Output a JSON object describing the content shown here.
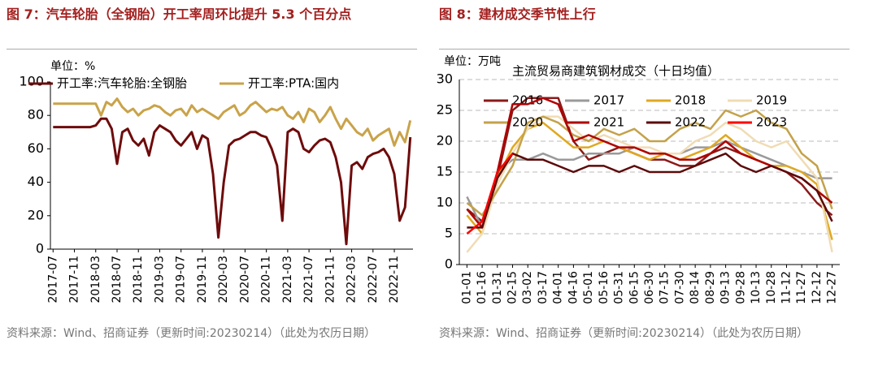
{
  "chart_data": [
    {
      "type": "line",
      "title": "图 7：汽车轮胎（全钢胎）开工率周环比提升 5.3 个百分点",
      "unit": "单位：%",
      "source": "资料来源：Wind、招商证券（更新时间:20230214）（此处为农历日期）",
      "legend": "top",
      "grid": false,
      "categories": [
        "2017-07",
        null,
        null,
        null,
        "2017-11",
        null,
        null,
        null,
        "2018-03",
        null,
        null,
        null,
        "2018-07",
        null,
        null,
        null,
        "2018-11",
        null,
        null,
        null,
        "2019-03",
        null,
        null,
        null,
        "2019-07",
        null,
        null,
        null,
        "2019-11",
        null,
        null,
        null,
        "2020-03",
        null,
        null,
        null,
        "2020-07",
        null,
        null,
        null,
        "2020-11",
        null,
        null,
        null,
        "2021-03",
        null,
        null,
        null,
        "2021-07",
        null,
        null,
        null,
        "2021-11",
        null,
        null,
        null,
        "2022-03",
        null,
        null,
        null,
        "2022-07",
        null,
        null,
        null,
        "2022-11",
        null,
        null,
        null
      ],
      "ylim": [
        0,
        100
      ],
      "yticks": [
        0,
        20,
        40,
        60,
        80,
        100
      ],
      "series": [
        {
          "name": "开工率:汽车轮胎:全钢胎",
          "color": "#6e0b0b",
          "values": [
            73,
            73,
            73,
            73,
            73,
            73,
            73,
            73,
            74,
            78,
            78,
            72,
            51,
            70,
            72,
            65,
            62,
            66,
            56,
            70,
            74,
            72,
            70,
            65,
            62,
            66,
            70,
            60,
            68,
            66,
            45,
            7,
            40,
            62,
            65,
            66,
            68,
            70,
            70,
            68,
            67,
            60,
            50,
            17,
            70,
            72,
            70,
            60,
            58,
            62,
            65,
            66,
            64,
            55,
            40,
            3,
            50,
            52,
            48,
            55,
            57,
            58,
            60,
            55,
            45,
            17,
            25,
            67
          ]
        },
        {
          "name": "开工率:PTA:国内",
          "color": "#c9a34a",
          "values": [
            87,
            87,
            87,
            87,
            87,
            87,
            87,
            87,
            87,
            80,
            88,
            86,
            90,
            85,
            82,
            84,
            80,
            83,
            84,
            86,
            85,
            82,
            80,
            83,
            84,
            80,
            86,
            82,
            84,
            82,
            80,
            78,
            82,
            84,
            86,
            80,
            82,
            86,
            88,
            85,
            82,
            84,
            83,
            85,
            80,
            78,
            82,
            76,
            84,
            82,
            76,
            80,
            85,
            78,
            72,
            78,
            74,
            70,
            68,
            72,
            65,
            68,
            70,
            72,
            62,
            70,
            64,
            77
          ]
        }
      ]
    },
    {
      "type": "line",
      "title": "图 8：建材成交季节性上行",
      "unit": "单位：万吨",
      "subtitle": "主流贸易商建筑钢材成交（十日均值）",
      "source": "资料来源：Wind、招商证券（更新时间:20230214）（此处为农历日期）",
      "legend": "top",
      "grid": true,
      "categories": [
        "01-01",
        "01-16",
        "01-31",
        "02-15",
        "03-02",
        "03-17",
        "04-01",
        "04-16",
        "05-01",
        "05-16",
        "05-31",
        "06-15",
        "06-30",
        "07-15",
        "07-30",
        "08-14",
        "08-29",
        "09-13",
        "09-28",
        "10-13",
        "10-28",
        "11-12",
        "11-27",
        "12-12",
        "12-27"
      ],
      "ylim": [
        0,
        30
      ],
      "yticks": [
        0,
        5,
        10,
        15,
        20,
        25,
        30
      ],
      "series": [
        {
          "name": "2016",
          "color": "#8b1a1a",
          "values": [
            9,
            7,
            14,
            25,
            27,
            27,
            27,
            20,
            17,
            18,
            19,
            18,
            17,
            17,
            16,
            16,
            18,
            19,
            18,
            17,
            16,
            15,
            13,
            10,
            8
          ]
        },
        {
          "name": "2017",
          "color": "#9a9a9a",
          "values": [
            11,
            6,
            15,
            17,
            17,
            18,
            17,
            17,
            18,
            18,
            18,
            19,
            18,
            18,
            18,
            19,
            19,
            20,
            19,
            18,
            17,
            16,
            15,
            14,
            14
          ]
        },
        {
          "name": "2018",
          "color": "#e0a820",
          "values": [
            8,
            5,
            14,
            19,
            22,
            23,
            21,
            19,
            19,
            20,
            19,
            18,
            17,
            18,
            17,
            18,
            19,
            21,
            19,
            17,
            16,
            16,
            15,
            13,
            4
          ]
        },
        {
          "name": "2019",
          "color": "#f0dcb4",
          "values": [
            2,
            5,
            13,
            18,
            22,
            24,
            24,
            22,
            20,
            21,
            20,
            19,
            19,
            18,
            18,
            20,
            21,
            23,
            22,
            20,
            19,
            20,
            17,
            14,
            2
          ]
        },
        {
          "name": "2020",
          "color": "#c4a24a",
          "values": [
            10,
            8,
            12,
            16,
            23,
            24,
            23,
            21,
            20,
            22,
            21,
            22,
            20,
            20,
            22,
            23,
            22,
            25,
            24,
            25,
            23,
            22,
            18,
            16,
            9
          ]
        },
        {
          "name": "2021",
          "color": "#b00000",
          "values": [
            9,
            6,
            15,
            26,
            26,
            27,
            26,
            20,
            21,
            20,
            19,
            19,
            18,
            18,
            17,
            17,
            18,
            20,
            18,
            17,
            16,
            15,
            14,
            12,
            10
          ]
        },
        {
          "name": "2022",
          "color": "#5c0a0a",
          "values": [
            6,
            6,
            14,
            18,
            17,
            17,
            16,
            15,
            16,
            16,
            15,
            16,
            15,
            15,
            15,
            16,
            17,
            18,
            16,
            15,
            16,
            15,
            14,
            12,
            7
          ]
        },
        {
          "name": "2023",
          "color": "#ff0000",
          "values": [
            5,
            7,
            15,
            18,
            null,
            null,
            null,
            null,
            null,
            null,
            null,
            null,
            null,
            null,
            null,
            null,
            null,
            null,
            null,
            null,
            null,
            null,
            null,
            null,
            null
          ]
        }
      ]
    }
  ]
}
